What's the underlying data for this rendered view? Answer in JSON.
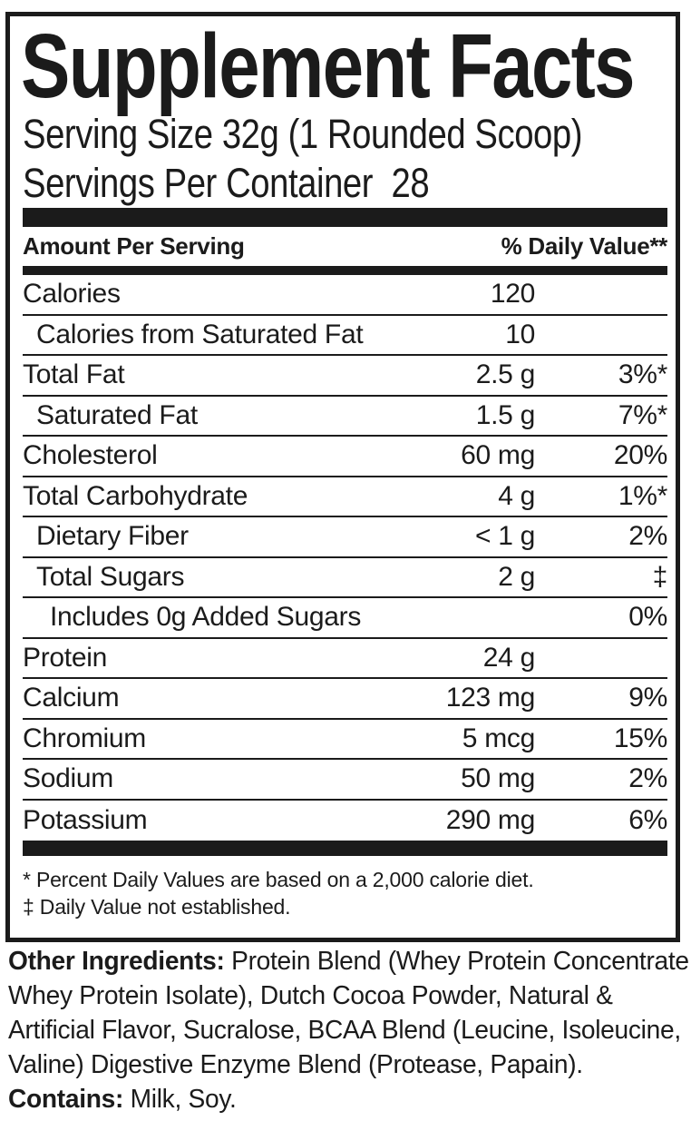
{
  "colors": {
    "ink": "#1b1b1b",
    "background": "#ffffff"
  },
  "label": {
    "title": "Supplement Facts",
    "serving_size": "Serving Size 32g (1 Rounded Scoop)",
    "servings_per_container": "Servings Per Container  28",
    "columns": {
      "amount_header": "Amount Per Serving",
      "daily_value_header": "% Daily Value**"
    },
    "rows": [
      {
        "name": "Calories",
        "amount": "120",
        "dv": ""
      },
      {
        "name": "Calories from Saturated Fat",
        "amount": "10",
        "dv": ""
      },
      {
        "name": "Total Fat",
        "amount": "2.5 g",
        "dv": "3%*"
      },
      {
        "name": "Saturated Fat",
        "amount": "1.5 g",
        "dv": "7%*"
      },
      {
        "name": "Cholesterol",
        "amount": "60 mg",
        "dv": "20%"
      },
      {
        "name": "Total Carbohydrate",
        "amount": "4 g",
        "dv": "1%*"
      },
      {
        "name": "Dietary Fiber",
        "amount": "< 1 g",
        "dv": "2%"
      },
      {
        "name": "Total Sugars",
        "amount": "2 g",
        "dv": "‡"
      },
      {
        "name": "Includes 0g Added Sugars",
        "amount": "",
        "dv": "0%"
      },
      {
        "name": "Protein",
        "amount": "24 g",
        "dv": ""
      },
      {
        "name": "Calcium",
        "amount": "123 mg",
        "dv": "9%"
      },
      {
        "name": "Chromium",
        "amount": "5 mcg",
        "dv": "15%"
      },
      {
        "name": "Sodium",
        "amount": "50 mg",
        "dv": "2%"
      },
      {
        "name": "Potassium",
        "amount": "290 mg",
        "dv": "6%"
      }
    ],
    "footnotes": [
      "* Percent Daily Values are based on a 2,000 calorie diet.",
      "‡ Daily Value not established."
    ]
  },
  "footer": {
    "other_ingredients_label": "Other Ingredients:",
    "other_ingredients_lines": [
      "Protein Blend (Whey Protein Concentrate,",
      "Whey Protein Isolate), Dutch Cocoa Powder, Natural &",
      "Artificial Flavor, Sucralose, BCAA Blend (Leucine, Isoleucine,",
      "Valine) Digestive Enzyme Blend (Protease, Papain)."
    ],
    "contains_label": "Contains:",
    "contains_text": "Milk, Soy."
  }
}
